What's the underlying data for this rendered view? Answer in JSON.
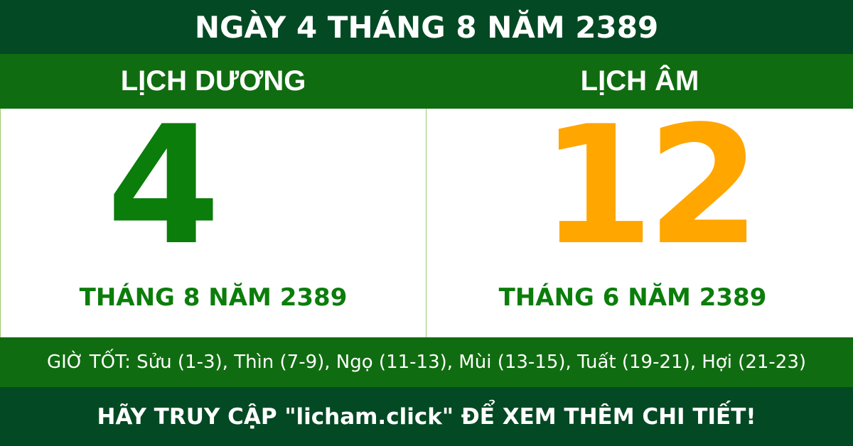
{
  "title": "NGÀY 4 THÁNG 8 NĂM 2389",
  "solar": {
    "heading": "LỊCH DƯƠNG",
    "day": "4",
    "month_year": "THÁNG 8 NĂM 2389",
    "color": "#0b7d0b"
  },
  "lunar": {
    "heading": "LỊCH ÂM",
    "day": "12",
    "month_year": "THÁNG 6 NĂM 2389",
    "color": "#ffa600"
  },
  "good_hours": "GIỜ TỐT: Sửu (1-3), Thìn (7-9), Ngọ (11-13), Mùi (13-15), Tuất (19-21), Hợi (21-23)",
  "footer": "HÃY TRUY CẬP \"licham.click\" ĐỂ XEM THÊM CHI TIẾT!"
}
